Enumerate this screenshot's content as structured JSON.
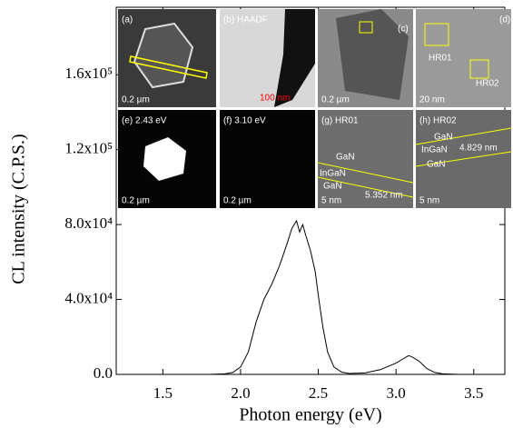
{
  "chart_data": {
    "type": "line",
    "x_label": "Photon energy (eV)",
    "y_label": "CL intensity (C.P.S.)",
    "xlim": [
      1.2,
      3.7
    ],
    "ylim": [
      0,
      196000
    ],
    "xticks": [
      1.5,
      {
        "value": 2,
        "label": "2.0"
      },
      2.5,
      {
        "value": 3,
        "label": "3.0"
      },
      3.5
    ],
    "yticks": [
      {
        "value": 0,
        "label": "0.0"
      },
      {
        "value": 40000,
        "label": "4.0x10⁴"
      },
      {
        "value": 80000,
        "label": "8.0x10⁴"
      },
      {
        "value": 120000,
        "label": "1.2x10⁵"
      },
      {
        "value": 160000,
        "label": "1.6x10⁵"
      }
    ],
    "color": "#000000",
    "x": [
      1.2,
      1.8,
      1.9,
      1.95,
      2.0,
      2.05,
      2.1,
      2.15,
      2.2,
      2.25,
      2.3,
      2.33,
      2.36,
      2.38,
      2.4,
      2.42,
      2.45,
      2.48,
      2.5,
      2.53,
      2.56,
      2.6,
      2.65,
      2.7,
      2.8,
      2.9,
      3.0,
      3.05,
      3.08,
      3.1,
      3.15,
      3.2,
      3.25,
      3.3,
      3.4,
      3.7
    ],
    "values": [
      0,
      0,
      300,
      1000,
      4000,
      12000,
      28000,
      40000,
      48000,
      58000,
      70000,
      78000,
      82000,
      76000,
      80000,
      74000,
      66000,
      55000,
      42000,
      25000,
      12000,
      4000,
      1200,
      500,
      800,
      2500,
      6000,
      8500,
      10000,
      9500,
      7000,
      3000,
      1000,
      300,
      0,
      0
    ],
    "insets": [
      {
        "labels": [
          "(a)",
          "0.2 µm"
        ]
      },
      {
        "labels": [
          "(b) HAADF",
          "100 nm"
        ]
      },
      {
        "labels": [
          "(c)",
          "0.2 µm"
        ]
      },
      {
        "labels": [
          "(d)",
          "HR01",
          "HR02",
          "20 nm"
        ]
      },
      {
        "labels": [
          "(e) 2.43 eV",
          "0.2 µm"
        ]
      },
      {
        "labels": [
          "(f) 3.10 eV",
          "0.2 µm"
        ]
      },
      {
        "labels": [
          "(g) HR01",
          "GaN",
          "InGaN",
          "GaN",
          "5.352 nm",
          "5 nm"
        ]
      },
      {
        "labels": [
          "(h) HR02",
          "GaN",
          "InGaN",
          "4.829 nm",
          "GaN",
          "5 nm"
        ]
      }
    ]
  }
}
